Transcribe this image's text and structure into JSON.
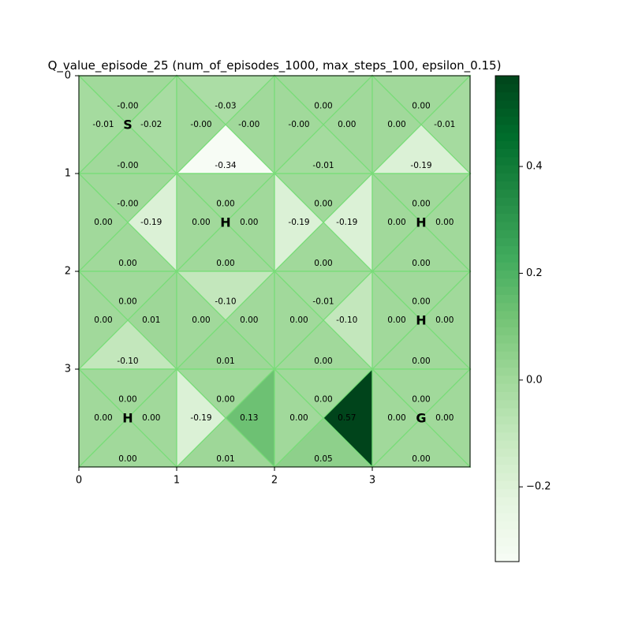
{
  "chart_data": {
    "type": "heatmap",
    "title": "Q_value_episode_25 (num_of_episodes_1000, max_steps_100, epsilon_0.15)",
    "grid": {
      "rows": 4,
      "cols": 4
    },
    "x_ticks": [
      "0",
      "1",
      "2",
      "3"
    ],
    "y_ticks": [
      "0",
      "1",
      "2",
      "3"
    ],
    "action_order": [
      "left",
      "down",
      "right",
      "up"
    ],
    "cells": [
      {
        "row": 0,
        "col": 0,
        "label": "S",
        "q": {
          "left": -0.01,
          "down": 0.0,
          "right": -0.02,
          "up": 0.0
        },
        "text": {
          "left": "-0.01",
          "down": "-0.00",
          "right": "-0.02",
          "up": "-0.00"
        }
      },
      {
        "row": 0,
        "col": 1,
        "label": "",
        "q": {
          "left": 0.0,
          "down": -0.34,
          "right": 0.0,
          "up": -0.03
        },
        "text": {
          "left": "-0.00",
          "down": "-0.34",
          "right": "-0.00",
          "up": "-0.03"
        }
      },
      {
        "row": 0,
        "col": 2,
        "label": "",
        "q": {
          "left": 0.0,
          "down": -0.01,
          "right": 0.0,
          "up": 0.0
        },
        "text": {
          "left": "-0.00",
          "down": "-0.01",
          "right": "0.00",
          "up": "0.00"
        }
      },
      {
        "row": 0,
        "col": 3,
        "label": "",
        "q": {
          "left": 0.0,
          "down": -0.19,
          "right": -0.01,
          "up": 0.0
        },
        "text": {
          "left": "0.00",
          "down": "-0.19",
          "right": "-0.01",
          "up": "0.00"
        }
      },
      {
        "row": 1,
        "col": 0,
        "label": "",
        "q": {
          "left": 0.0,
          "down": 0.0,
          "right": -0.19,
          "up": 0.0
        },
        "text": {
          "left": "0.00",
          "down": "0.00",
          "right": "-0.19",
          "up": "-0.00"
        }
      },
      {
        "row": 1,
        "col": 1,
        "label": "H",
        "q": {
          "left": 0.0,
          "down": 0.0,
          "right": 0.0,
          "up": 0.0
        },
        "text": {
          "left": "0.00",
          "down": "0.00",
          "right": "0.00",
          "up": "0.00"
        }
      },
      {
        "row": 1,
        "col": 2,
        "label": "",
        "q": {
          "left": -0.19,
          "down": 0.0,
          "right": -0.19,
          "up": 0.0
        },
        "text": {
          "left": "-0.19",
          "down": "0.00",
          "right": "-0.19",
          "up": "0.00"
        }
      },
      {
        "row": 1,
        "col": 3,
        "label": "H",
        "q": {
          "left": 0.0,
          "down": 0.0,
          "right": 0.0,
          "up": 0.0
        },
        "text": {
          "left": "0.00",
          "down": "0.00",
          "right": "0.00",
          "up": "0.00"
        }
      },
      {
        "row": 2,
        "col": 0,
        "label": "",
        "q": {
          "left": 0.0,
          "down": -0.1,
          "right": 0.01,
          "up": 0.0
        },
        "text": {
          "left": "0.00",
          "down": "-0.10",
          "right": "0.01",
          "up": "0.00"
        }
      },
      {
        "row": 2,
        "col": 1,
        "label": "",
        "q": {
          "left": 0.0,
          "down": 0.01,
          "right": 0.0,
          "up": -0.1
        },
        "text": {
          "left": "0.00",
          "down": "0.01",
          "right": "0.00",
          "up": "-0.10"
        }
      },
      {
        "row": 2,
        "col": 2,
        "label": "",
        "q": {
          "left": 0.0,
          "down": 0.0,
          "right": -0.1,
          "up": -0.01
        },
        "text": {
          "left": "0.00",
          "down": "0.00",
          "right": "-0.10",
          "up": "-0.01"
        }
      },
      {
        "row": 2,
        "col": 3,
        "label": "H",
        "q": {
          "left": 0.0,
          "down": 0.0,
          "right": 0.0,
          "up": 0.0
        },
        "text": {
          "left": "0.00",
          "down": "0.00",
          "right": "0.00",
          "up": "0.00"
        }
      },
      {
        "row": 3,
        "col": 0,
        "label": "H",
        "q": {
          "left": 0.0,
          "down": 0.0,
          "right": 0.0,
          "up": 0.0
        },
        "text": {
          "left": "0.00",
          "down": "0.00",
          "right": "0.00",
          "up": "0.00"
        }
      },
      {
        "row": 3,
        "col": 1,
        "label": "",
        "q": {
          "left": -0.19,
          "down": 0.01,
          "right": 0.13,
          "up": 0.0
        },
        "text": {
          "left": "-0.19",
          "down": "0.01",
          "right": "0.13",
          "up": "0.00"
        }
      },
      {
        "row": 3,
        "col": 2,
        "label": "",
        "q": {
          "left": 0.0,
          "down": 0.05,
          "right": 0.57,
          "up": 0.0
        },
        "text": {
          "left": "0.00",
          "down": "0.05",
          "right": "0.57",
          "up": "0.00"
        }
      },
      {
        "row": 3,
        "col": 3,
        "label": "G",
        "q": {
          "left": 0.0,
          "down": 0.0,
          "right": 0.0,
          "up": 0.0
        },
        "text": {
          "left": "0.00",
          "down": "0.00",
          "right": "0.00",
          "up": "0.00"
        }
      }
    ],
    "colorbar": {
      "colormap": "Greens",
      "range": [
        -0.34,
        0.57
      ],
      "ticks": [
        {
          "value": -0.2,
          "label": "−0.2"
        },
        {
          "value": 0.0,
          "label": "0.0"
        },
        {
          "value": 0.2,
          "label": "0.2"
        },
        {
          "value": 0.4,
          "label": "0.4"
        }
      ]
    },
    "colors": {
      "grid_line": "#77dd77",
      "colormap_stops": [
        "#f7fcf5",
        "#e5f5e0",
        "#c7e9c0",
        "#a1d99b",
        "#74c476",
        "#41ab5d",
        "#238b45",
        "#006d2c",
        "#00441b"
      ]
    }
  }
}
